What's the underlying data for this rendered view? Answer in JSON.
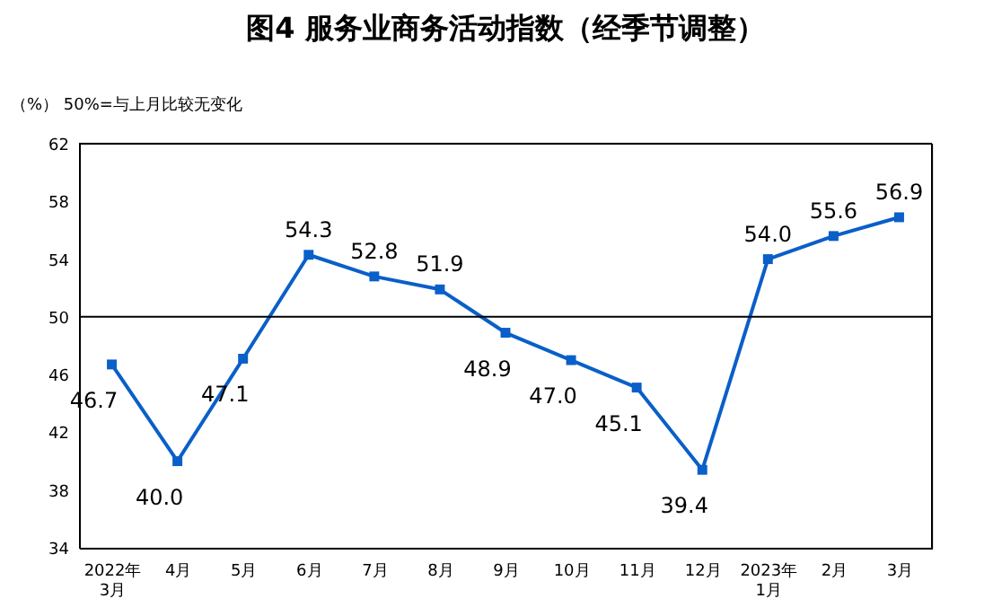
{
  "chart_data": {
    "type": "line",
    "title": "图4  服务业商务活动指数（经季节调整）",
    "ylabel": "（%）",
    "annotations": [
      "50%=与上月比较无变化"
    ],
    "categories": [
      "2022年\n3月",
      "4月",
      "5月",
      "6月",
      "7月",
      "8月",
      "9月",
      "10月",
      "11月",
      "12月",
      "2023年\n1月",
      "2月",
      "3月"
    ],
    "series": [
      {
        "color": "#0a5fc8",
        "values": [
          46.7,
          40.0,
          47.1,
          54.3,
          52.8,
          51.9,
          48.9,
          47.0,
          45.1,
          39.4,
          54.0,
          55.6,
          56.9
        ]
      }
    ],
    "ylim": [
      34,
      62
    ],
    "yticks": [
      34,
      38,
      42,
      46,
      50,
      54,
      58,
      62
    ],
    "ref_lines": [
      {
        "axis": "y",
        "value": 50,
        "color": "#000000"
      }
    ],
    "value_labels": [
      "46.7",
      "40.0",
      "47.1",
      "54.3",
      "52.8",
      "51.9",
      "48.9",
      "47.0",
      "45.1",
      "39.4",
      "54.0",
      "55.6",
      "56.9"
    ],
    "marker": "square",
    "line_style": "solid",
    "grid": false
  }
}
